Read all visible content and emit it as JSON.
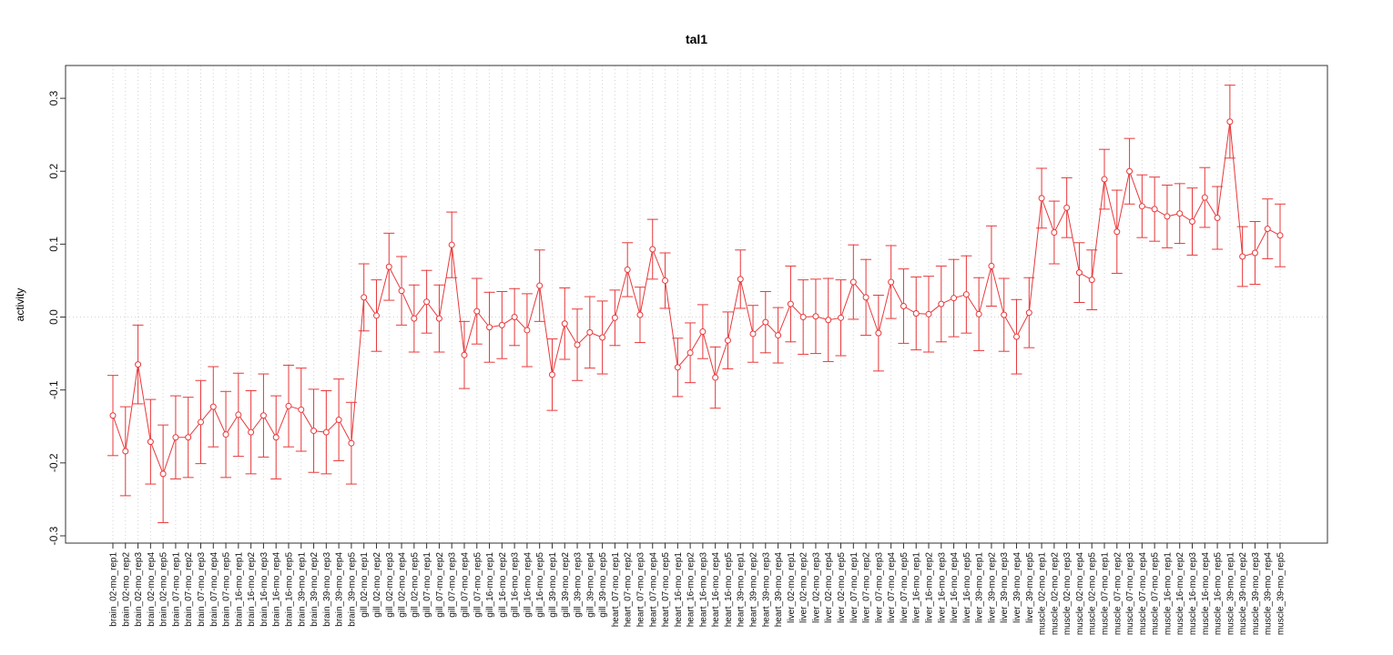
{
  "chart_data": {
    "type": "line",
    "title": "tal1",
    "xlabel": "",
    "ylabel": "activity",
    "ylim": [
      -0.31,
      0.345
    ],
    "yticks": [
      -0.3,
      -0.2,
      -0.1,
      0.0,
      0.1,
      0.2,
      0.3
    ],
    "ytick_labels": [
      "-0.3",
      "-0.2",
      "-0.1",
      "0.0",
      "0.1",
      "0.2",
      "0.3"
    ],
    "grid": true,
    "series_color": "#e8383b",
    "grid_color": "#d3d3d3",
    "categories": [
      "brain_02-mo_rep1",
      "brain_02-mo_rep2",
      "brain_02-mo_rep3",
      "brain_02-mo_rep4",
      "brain_02-mo_rep5",
      "brain_07-mo_rep1",
      "brain_07-mo_rep2",
      "brain_07-mo_rep3",
      "brain_07-mo_rep4",
      "brain_07-mo_rep5",
      "brain_16-mo_rep1",
      "brain_16-mo_rep2",
      "brain_16-mo_rep3",
      "brain_16-mo_rep4",
      "brain_16-mo_rep5",
      "brain_39-mo_rep1",
      "brain_39-mo_rep2",
      "brain_39-mo_rep3",
      "brain_39-mo_rep4",
      "brain_39-mo_rep5",
      "gill_02-mo_rep1",
      "gill_02-mo_rep2",
      "gill_02-mo_rep3",
      "gill_02-mo_rep4",
      "gill_02-mo_rep5",
      "gill_07-mo_rep1",
      "gill_07-mo_rep2",
      "gill_07-mo_rep3",
      "gill_07-mo_rep4",
      "gill_07-mo_rep5",
      "gill_16-mo_rep1",
      "gill_16-mo_rep2",
      "gill_16-mo_rep3",
      "gill_16-mo_rep4",
      "gill_16-mo_rep5",
      "gill_39-mo_rep1",
      "gill_39-mo_rep2",
      "gill_39-mo_rep3",
      "gill_39-mo_rep4",
      "gill_39-mo_rep5",
      "heart_07-mo_rep1",
      "heart_07-mo_rep2",
      "heart_07-mo_rep3",
      "heart_07-mo_rep4",
      "heart_07-mo_rep5",
      "heart_16-mo_rep1",
      "heart_16-mo_rep2",
      "heart_16-mo_rep3",
      "heart_16-mo_rep4",
      "heart_16-mo_rep5",
      "heart_39-mo_rep1",
      "heart_39-mo_rep2",
      "heart_39-mo_rep3",
      "heart_39-mo_rep4",
      "liver_02-mo_rep1",
      "liver_02-mo_rep2",
      "liver_02-mo_rep3",
      "liver_02-mo_rep4",
      "liver_02-mo_rep5",
      "liver_07-mo_rep1",
      "liver_07-mo_rep2",
      "liver_07-mo_rep3",
      "liver_07-mo_rep4",
      "liver_07-mo_rep5",
      "liver_16-mo_rep1",
      "liver_16-mo_rep2",
      "liver_16-mo_rep3",
      "liver_16-mo_rep4",
      "liver_16-mo_rep5",
      "liver_39-mo_rep1",
      "liver_39-mo_rep2",
      "liver_39-mo_rep3",
      "liver_39-mo_rep4",
      "liver_39-mo_rep5",
      "muscle_02-mo_rep1",
      "muscle_02-mo_rep2",
      "muscle_02-mo_rep3",
      "muscle_02-mo_rep4",
      "muscle_02-mo_rep5",
      "muscle_07-mo_rep1",
      "muscle_07-mo_rep2",
      "muscle_07-mo_rep3",
      "muscle_07-mo_rep4",
      "muscle_07-mo_rep5",
      "muscle_16-mo_rep1",
      "muscle_16-mo_rep2",
      "muscle_16-mo_rep3",
      "muscle_16-mo_rep4",
      "muscle_16-mo_rep5",
      "muscle_39-mo_rep1",
      "muscle_39-mo_rep2",
      "muscle_39-mo_rep3",
      "muscle_39-mo_rep4",
      "muscle_39-mo_rep5"
    ],
    "values": [
      -0.135,
      -0.184,
      -0.065,
      -0.171,
      -0.215,
      -0.165,
      -0.165,
      -0.144,
      -0.123,
      -0.161,
      -0.134,
      -0.158,
      -0.135,
      -0.165,
      -0.122,
      -0.127,
      -0.156,
      -0.158,
      -0.141,
      -0.173,
      0.027,
      0.002,
      0.069,
      0.036,
      -0.002,
      0.021,
      -0.002,
      0.099,
      -0.052,
      0.008,
      -0.014,
      -0.011,
      0.0,
      -0.018,
      0.043,
      -0.079,
      -0.009,
      -0.038,
      -0.021,
      -0.028,
      -0.001,
      0.065,
      0.003,
      0.093,
      0.05,
      -0.069,
      -0.049,
      -0.02,
      -0.083,
      -0.032,
      0.052,
      -0.023,
      -0.007,
      -0.025,
      0.018,
      0.0,
      0.001,
      -0.004,
      -0.001,
      0.048,
      0.027,
      -0.022,
      0.048,
      0.015,
      0.005,
      0.004,
      0.018,
      0.026,
      0.031,
      0.004,
      0.07,
      0.003,
      -0.027,
      0.006,
      0.163,
      0.116,
      0.15,
      0.061,
      0.051,
      0.189,
      0.117,
      0.2,
      0.152,
      0.148,
      0.138,
      0.142,
      0.131,
      0.164,
      0.136,
      0.268,
      0.083,
      0.088,
      0.121,
      0.112
    ],
    "errors": [
      0.055,
      0.061,
      0.054,
      0.058,
      0.067,
      0.057,
      0.055,
      0.057,
      0.055,
      0.059,
      0.057,
      0.057,
      0.057,
      0.057,
      0.056,
      0.057,
      0.057,
      0.057,
      0.056,
      0.056,
      0.046,
      0.049,
      0.046,
      0.047,
      0.046,
      0.043,
      0.046,
      0.045,
      0.046,
      0.045,
      0.048,
      0.046,
      0.039,
      0.05,
      0.049,
      0.049,
      0.049,
      0.049,
      0.049,
      0.05,
      0.038,
      0.037,
      0.038,
      0.041,
      0.038,
      0.04,
      0.041,
      0.037,
      0.042,
      0.039,
      0.04,
      0.039,
      0.042,
      0.038,
      0.052,
      0.051,
      0.051,
      0.057,
      0.052,
      0.051,
      0.052,
      0.052,
      0.05,
      0.051,
      0.05,
      0.052,
      0.052,
      0.053,
      0.053,
      0.05,
      0.055,
      0.05,
      0.051,
      0.048,
      0.041,
      0.043,
      0.041,
      0.041,
      0.041,
      0.041,
      0.057,
      0.045,
      0.043,
      0.044,
      0.043,
      0.041,
      0.046,
      0.041,
      0.043,
      0.05,
      0.041,
      0.043,
      0.041,
      0.043
    ]
  }
}
